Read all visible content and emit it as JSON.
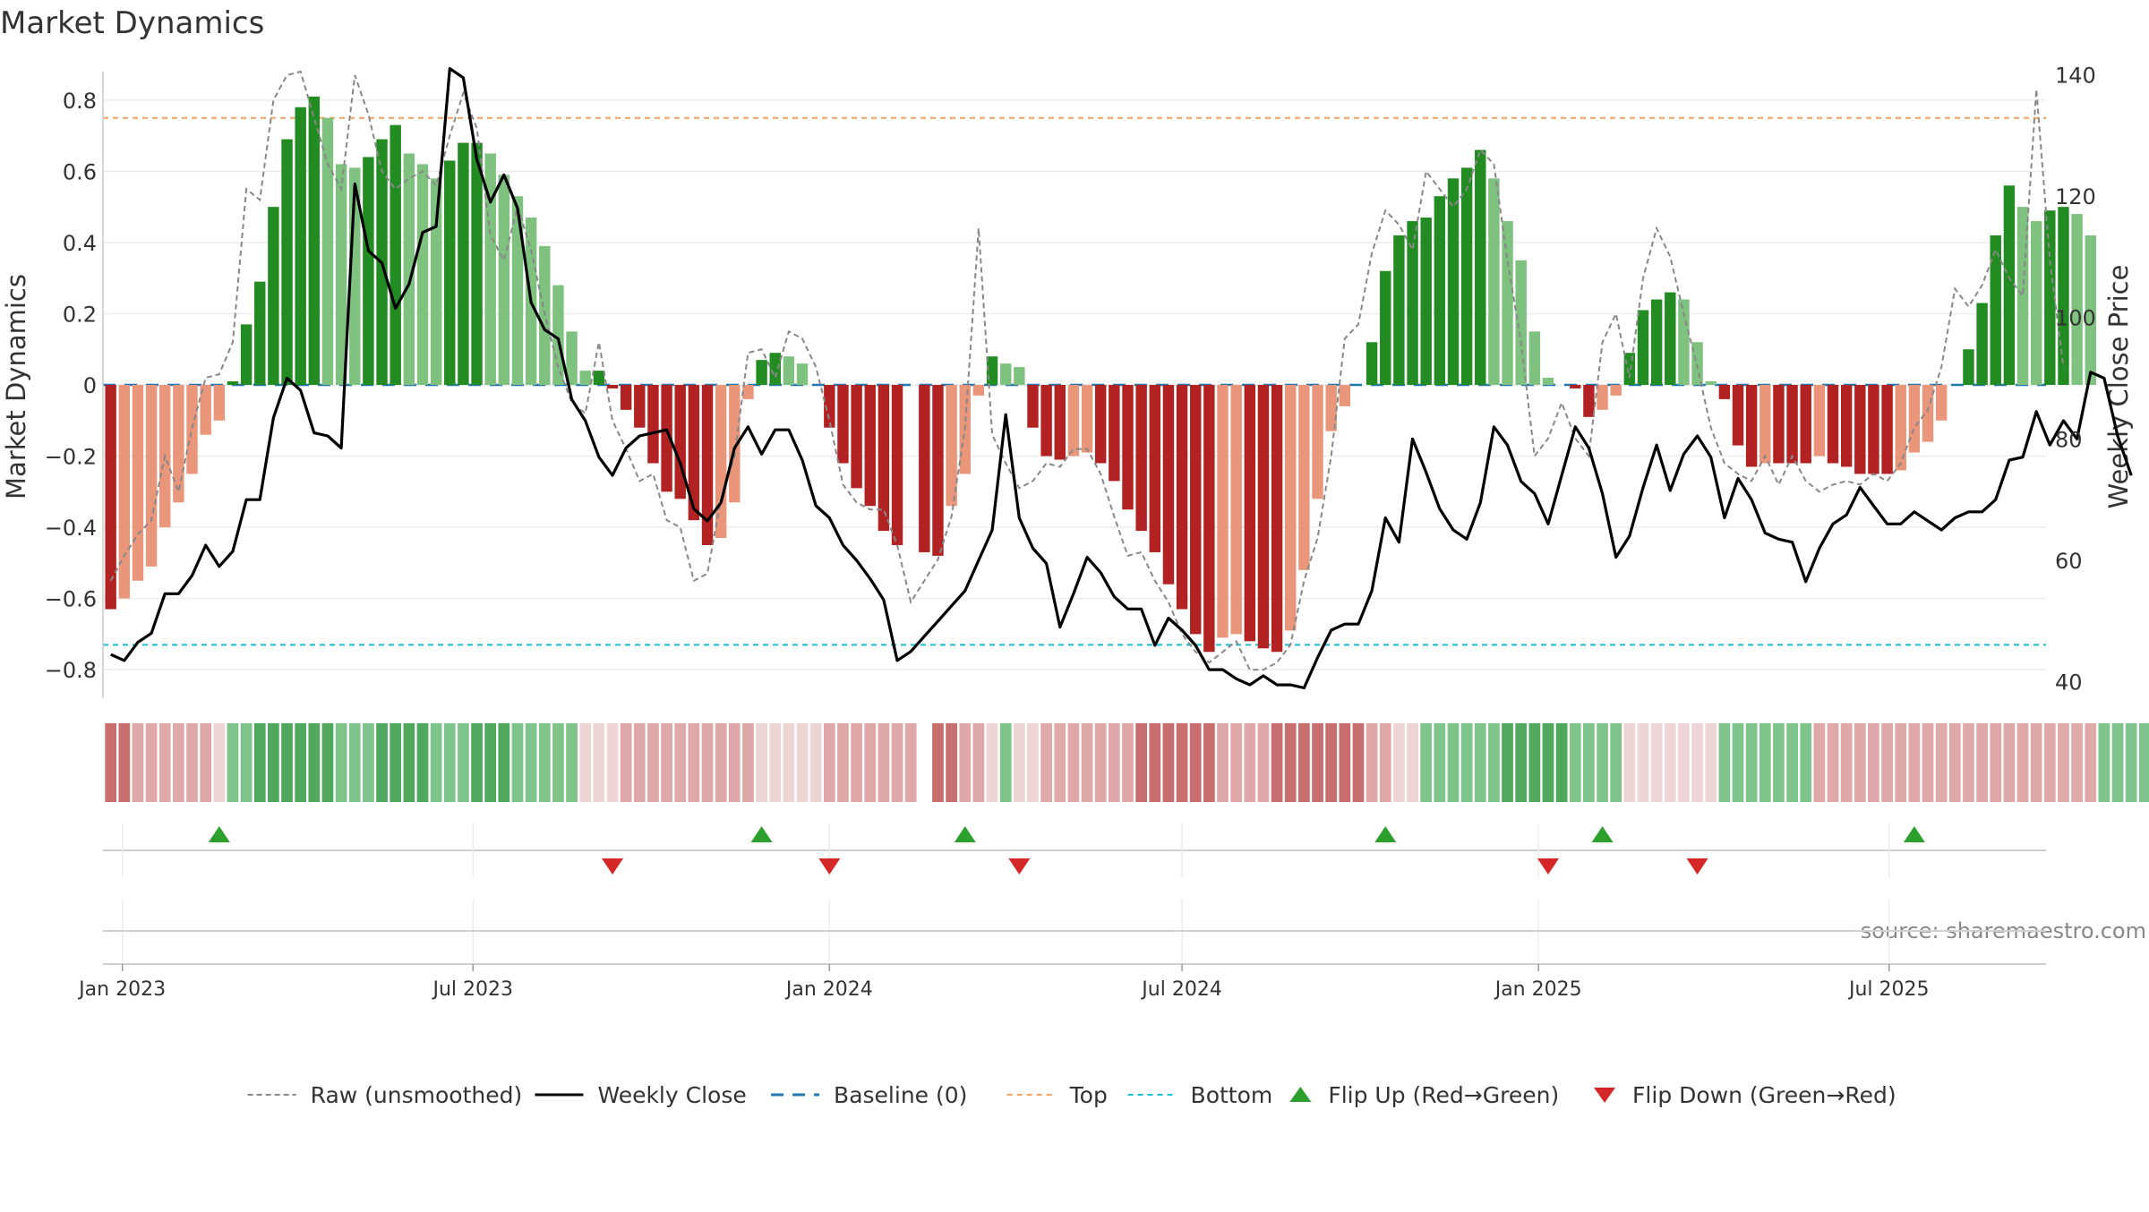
{
  "chart_data": {
    "type": "bar+line",
    "title": "Market Dynamics",
    "ylabel_left": "Market Dynamics",
    "ylabel_right": "Weekly Close Price",
    "ylim_left": [
      -0.88,
      0.88
    ],
    "ylim_right": [
      37.3,
      140.5
    ],
    "yticks_left": [
      0.8,
      0.6,
      0.4,
      0.2,
      0,
      -0.2,
      -0.4,
      -0.6,
      -0.8
    ],
    "ytick_labels_left": [
      "0.8",
      "0.6",
      "0.4",
      "0.2",
      "0",
      "−0.2",
      "−0.4",
      "−0.6",
      "−0.8"
    ],
    "yticks_right": [
      140,
      120,
      100,
      80,
      60,
      40
    ],
    "ytick_labels_right": [
      "140",
      "120",
      "100",
      "80",
      "60",
      "40"
    ],
    "x_start": "2022-12-26",
    "x_step_days": 7,
    "x_range": [
      "2022-12-22",
      "2025-09-20"
    ],
    "xticks": [
      {
        "date": "2023-01-01",
        "label": "Jan 2023"
      },
      {
        "date": "2023-07-01",
        "label": "Jul 2023"
      },
      {
        "date": "2024-01-01",
        "label": "Jan 2024"
      },
      {
        "date": "2024-07-01",
        "label": "Jul 2024"
      },
      {
        "date": "2025-01-01",
        "label": "Jan 2025"
      },
      {
        "date": "2025-07-01",
        "label": "Jul 2025"
      }
    ],
    "top_level": 0.75,
    "bottom_level": -0.73,
    "baseline": 0,
    "series": [
      {
        "name": "Market Dynamics (smoothed)",
        "kind": "bar",
        "values": [
          -0.63,
          -0.6,
          -0.55,
          -0.51,
          -0.4,
          -0.33,
          -0.25,
          -0.14,
          -0.1,
          0.01,
          0.17,
          0.29,
          0.5,
          0.69,
          0.78,
          0.81,
          0.75,
          0.62,
          0.61,
          0.64,
          0.69,
          0.73,
          0.65,
          0.62,
          0.58,
          0.63,
          0.68,
          0.68,
          0.65,
          0.59,
          0.53,
          0.47,
          0.39,
          0.28,
          0.15,
          0.04,
          0.04,
          -0.01,
          -0.07,
          -0.12,
          -0.22,
          -0.3,
          -0.32,
          -0.38,
          -0.45,
          -0.43,
          -0.33,
          -0.04,
          0.07,
          0.09,
          0.08,
          0.06,
          0,
          -0.12,
          -0.22,
          -0.29,
          -0.34,
          -0.41,
          -0.45,
          0,
          -0.47,
          -0.48,
          -0.34,
          -0.25,
          -0.03,
          0.08,
          0.06,
          0.05,
          -0.12,
          -0.2,
          -0.21,
          -0.2,
          -0.19,
          -0.22,
          -0.27,
          -0.35,
          -0.41,
          -0.47,
          -0.56,
          -0.63,
          -0.7,
          -0.75,
          -0.71,
          -0.7,
          -0.72,
          -0.74,
          -0.75,
          -0.69,
          -0.52,
          -0.32,
          -0.13,
          -0.06,
          0,
          0.12,
          0.32,
          0.42,
          0.46,
          0.47,
          0.53,
          0.58,
          0.61,
          0.66,
          0.58,
          0.46,
          0.35,
          0.15,
          0.02,
          0,
          -0.01,
          -0.09,
          -0.07,
          -0.03,
          0.09,
          0.21,
          0.24,
          0.26,
          0.24,
          0.12,
          0.01,
          -0.04,
          -0.17,
          -0.23,
          -0.22,
          -0.22,
          -0.22,
          -0.22,
          -0.2,
          -0.22,
          -0.23,
          -0.25,
          -0.25,
          -0.25,
          -0.24,
          -0.19,
          -0.16,
          -0.1,
          0,
          0.1,
          0.23,
          0.42,
          0.56,
          0.5,
          0.46,
          0.49,
          0.5,
          0.48,
          0.42
        ]
      },
      {
        "name": "Raw (unsmoothed)",
        "kind": "line",
        "values": [
          -0.55,
          -0.48,
          -0.42,
          -0.38,
          -0.2,
          -0.3,
          -0.12,
          0.02,
          0.03,
          0.12,
          0.55,
          0.52,
          0.8,
          0.87,
          0.88,
          0.75,
          0.62,
          0.55,
          0.87,
          0.76,
          0.6,
          0.55,
          0.58,
          0.6,
          0.56,
          0.7,
          0.82,
          0.72,
          0.42,
          0.35,
          0.5,
          0.38,
          0.2,
          0.05,
          -0.05,
          -0.08,
          0.12,
          -0.1,
          -0.18,
          -0.27,
          -0.25,
          -0.38,
          -0.4,
          -0.55,
          -0.53,
          -0.32,
          -0.2,
          0.09,
          0.1,
          0.02,
          0.15,
          0.13,
          0.05,
          -0.1,
          -0.28,
          -0.33,
          -0.35,
          -0.35,
          -0.45,
          -0.61,
          -0.55,
          -0.49,
          -0.37,
          -0.12,
          0.44,
          -0.14,
          -0.22,
          -0.29,
          -0.27,
          -0.22,
          -0.23,
          -0.18,
          -0.18,
          -0.25,
          -0.37,
          -0.48,
          -0.47,
          -0.55,
          -0.61,
          -0.7,
          -0.75,
          -0.78,
          -0.75,
          -0.72,
          -0.8,
          -0.8,
          -0.78,
          -0.73,
          -0.55,
          -0.43,
          -0.2,
          0.13,
          0.17,
          0.37,
          0.49,
          0.45,
          0.38,
          0.6,
          0.55,
          0.5,
          0.55,
          0.66,
          0.62,
          0.35,
          0.12,
          -0.2,
          -0.15,
          -0.05,
          -0.15,
          -0.2,
          0.12,
          0.2,
          0.02,
          0.3,
          0.44,
          0.36,
          0.2,
          0.05,
          -0.12,
          -0.22,
          -0.25,
          -0.27,
          -0.2,
          -0.28,
          -0.2,
          -0.27,
          -0.3,
          -0.28,
          -0.27,
          -0.28,
          -0.25,
          -0.27,
          -0.22,
          -0.12,
          -0.07,
          0.05,
          0.27,
          0.22,
          0.28,
          0.38,
          0.3,
          0.25,
          0.83,
          0.35,
          0.05
        ]
      },
      {
        "name": "Weekly Close",
        "kind": "line",
        "axis": "right",
        "values": [
          44.5,
          43.5,
          46.5,
          48,
          54.5,
          54.5,
          57.5,
          62.5,
          59,
          61.5,
          70,
          70,
          83.5,
          90,
          88,
          81,
          80.5,
          78.5,
          122,
          111,
          109,
          101.5,
          105.5,
          114,
          115,
          141,
          139.5,
          126,
          119,
          123.5,
          118,
          102.5,
          98,
          96.5,
          86.5,
          83,
          77,
          74,
          78.5,
          80.5,
          81,
          81.5,
          76,
          68.5,
          66.5,
          69.5,
          78.5,
          82,
          77.5,
          81.5,
          81.5,
          76.5,
          69,
          67,
          62.5,
          60,
          57,
          53.5,
          43.5,
          45,
          47.5,
          50,
          52.5,
          55,
          60,
          65,
          84,
          67,
          62,
          59.5,
          49,
          54.5,
          60.5,
          58,
          54,
          52,
          52,
          46,
          50.5,
          48.5,
          46,
          42,
          42,
          40.5,
          39.5,
          41,
          39.5,
          39.5,
          39,
          44,
          48.5,
          49.5,
          49.5,
          55,
          67,
          63,
          80,
          74.5,
          68.5,
          65,
          63.5,
          69.5,
          82,
          79,
          73,
          71,
          66,
          74,
          82,
          78.5,
          71,
          60.5,
          64,
          72,
          79,
          71.5,
          77.5,
          80.5,
          77,
          67,
          73.5,
          70,
          64.5,
          63.5,
          63,
          56.5,
          62,
          66,
          67.5,
          72,
          69,
          66,
          66,
          68,
          66.5,
          65,
          67,
          68,
          68,
          70,
          76.5,
          77,
          84.5,
          79,
          83,
          80,
          91,
          90,
          80.5,
          74
        ]
      }
    ],
    "regime_strip": [
      -2,
      -2,
      -1,
      -1,
      -1,
      -1,
      -1,
      -1,
      0,
      1,
      1,
      2,
      2,
      2,
      2,
      2,
      2,
      1,
      1,
      1,
      2,
      2,
      2,
      2,
      1,
      1,
      1,
      2,
      2,
      2,
      1,
      1,
      1,
      1,
      1,
      0,
      0,
      0,
      -1,
      -1,
      -1,
      -1,
      -1,
      -1,
      -1,
      -1,
      -1,
      -1,
      0,
      0,
      0,
      0,
      0,
      -1,
      -1,
      -1,
      -1,
      -1,
      -1,
      -1,
      "gap",
      -2,
      -2,
      -1,
      -1,
      0,
      1,
      0,
      0,
      -1,
      -1,
      -1,
      -1,
      -1,
      -1,
      -1,
      -2,
      -2,
      -2,
      -2,
      -2,
      -2,
      -1,
      -1,
      -1,
      -1,
      -2,
      -2,
      -2,
      -2,
      -2,
      -2,
      -2,
      -1,
      -1,
      0,
      0,
      1,
      1,
      1,
      1,
      1,
      1,
      2,
      2,
      2,
      2,
      2,
      1,
      1,
      1,
      1,
      0,
      0,
      0,
      0,
      0,
      0,
      0,
      1,
      1,
      1,
      1,
      1,
      1,
      1,
      -1,
      -1,
      -1,
      -1,
      -1,
      -1,
      -1,
      -1,
      -1,
      -1,
      -1,
      -1,
      -1,
      -1,
      -1,
      -1,
      -1,
      -1,
      -1,
      -1,
      -1,
      1,
      1,
      1,
      1,
      1,
      1,
      1,
      1,
      1,
      1,
      1,
      1
    ],
    "regime_colors": {
      "-2": "#c96e6e",
      "-1": "#e0a9a9",
      "0": "#eed5d5",
      "1": "#7fc48a",
      "2": "#4fa85e"
    },
    "flips": [
      {
        "date": "2023-02-20",
        "direction": "up"
      },
      {
        "date": "2023-09-11",
        "direction": "down"
      },
      {
        "date": "2023-11-27",
        "direction": "up"
      },
      {
        "date": "2024-01-01",
        "direction": "down"
      },
      {
        "date": "2024-03-11",
        "direction": "up"
      },
      {
        "date": "2024-04-08",
        "direction": "down"
      },
      {
        "date": "2024-10-14",
        "direction": "up"
      },
      {
        "date": "2025-01-06",
        "direction": "down"
      },
      {
        "date": "2025-02-03",
        "direction": "up"
      },
      {
        "date": "2025-03-24",
        "direction": "down"
      },
      {
        "date": "2025-07-14",
        "direction": "up"
      }
    ],
    "colors": {
      "strong_green": "#228b22",
      "light_green": "#7fc17f",
      "strong_red": "#b22222",
      "light_red": "#e9967a",
      "raw_line": "#888888",
      "close_line": "#000000",
      "baseline": "#1f77b4",
      "top": "#f4a261",
      "bottom": "#17becf",
      "flip_up": "#2ca02c",
      "flip_down": "#d62728"
    },
    "legend": [
      {
        "label": "Raw (unsmoothed)",
        "style": "raw"
      },
      {
        "label": "Weekly Close",
        "style": "close"
      },
      {
        "label": "Baseline (0)",
        "style": "baseline"
      },
      {
        "label": "Top",
        "style": "top"
      },
      {
        "label": "Bottom",
        "style": "bottom"
      },
      {
        "label": "Flip Up (Red→Green)",
        "style": "up"
      },
      {
        "label": "Flip Down (Green→Red)",
        "style": "down"
      }
    ],
    "legend_position": "bottom-center",
    "source": "source: sharemaestro.com"
  }
}
